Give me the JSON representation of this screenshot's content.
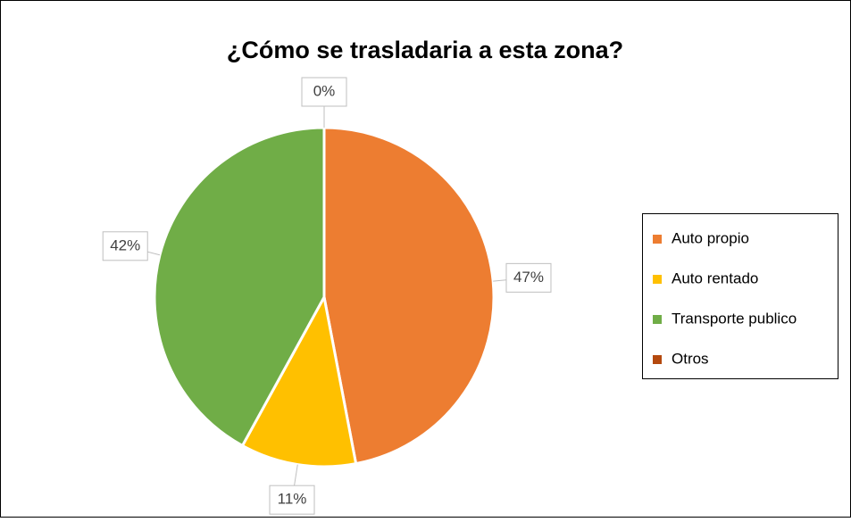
{
  "chart_data": {
    "type": "pie",
    "title": "¿Cómo se trasladaria a esta zona?",
    "categories": [
      "Auto propio",
      "Auto rentado",
      "Transporte publico",
      "Otros"
    ],
    "values": [
      47,
      11,
      42,
      0
    ],
    "value_labels": [
      "47%",
      "11%",
      "42%",
      "0%"
    ],
    "colors": [
      "#ED7D31",
      "#FFC000",
      "#70AD47",
      "#B4490E"
    ],
    "legend": "right"
  }
}
